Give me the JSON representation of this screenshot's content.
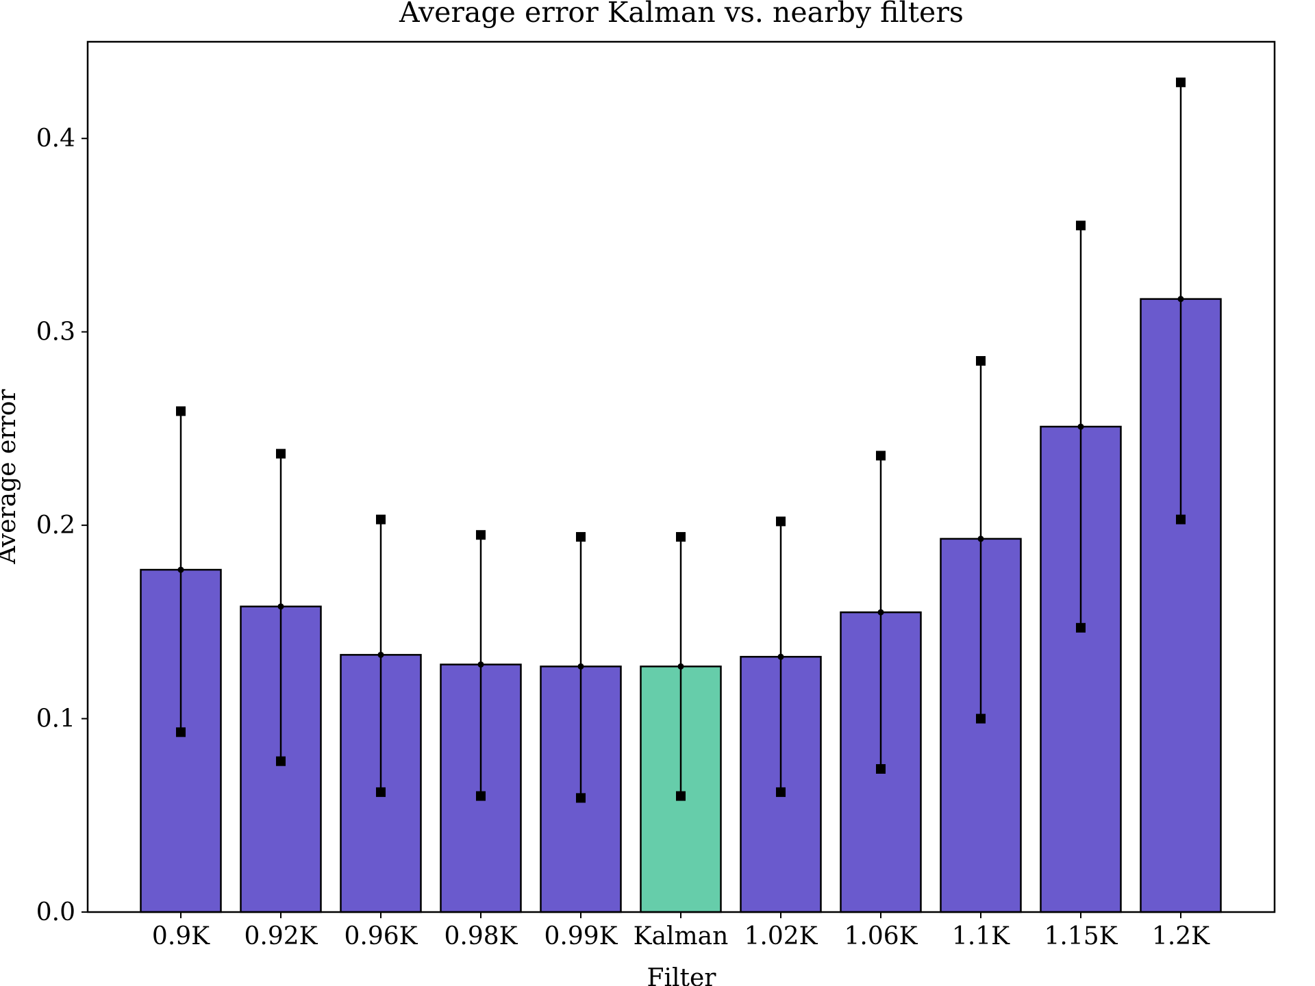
{
  "chart_data": {
    "type": "bar",
    "title": "Average error Kalman vs. nearby filters",
    "xlabel": "Filter",
    "ylabel": "Average error",
    "categories": [
      "0.9K",
      "0.92K",
      "0.96K",
      "0.98K",
      "0.99K",
      "Kalman",
      "1.02K",
      "1.06K",
      "1.1K",
      "1.15K",
      "1.2K"
    ],
    "values": [
      0.177,
      0.158,
      0.133,
      0.128,
      0.127,
      0.127,
      0.132,
      0.155,
      0.193,
      0.251,
      0.317
    ],
    "err_low": [
      0.093,
      0.078,
      0.062,
      0.06,
      0.059,
      0.06,
      0.062,
      0.074,
      0.1,
      0.147,
      0.203
    ],
    "err_high": [
      0.259,
      0.237,
      0.203,
      0.195,
      0.194,
      0.194,
      0.202,
      0.236,
      0.285,
      0.355,
      0.429
    ],
    "highlight_index": 5,
    "ylim": [
      0,
      0.45
    ],
    "yticks": [
      "0.0",
      "0.1",
      "0.2",
      "0.3",
      "0.4"
    ],
    "ytick_values": [
      0,
      0.1,
      0.2,
      0.3,
      0.4
    ],
    "grid": false,
    "colors": {
      "bar": "#6a5acd",
      "highlight": "#66cdaa",
      "edge": "#000000",
      "errorbar": "#000000"
    }
  }
}
